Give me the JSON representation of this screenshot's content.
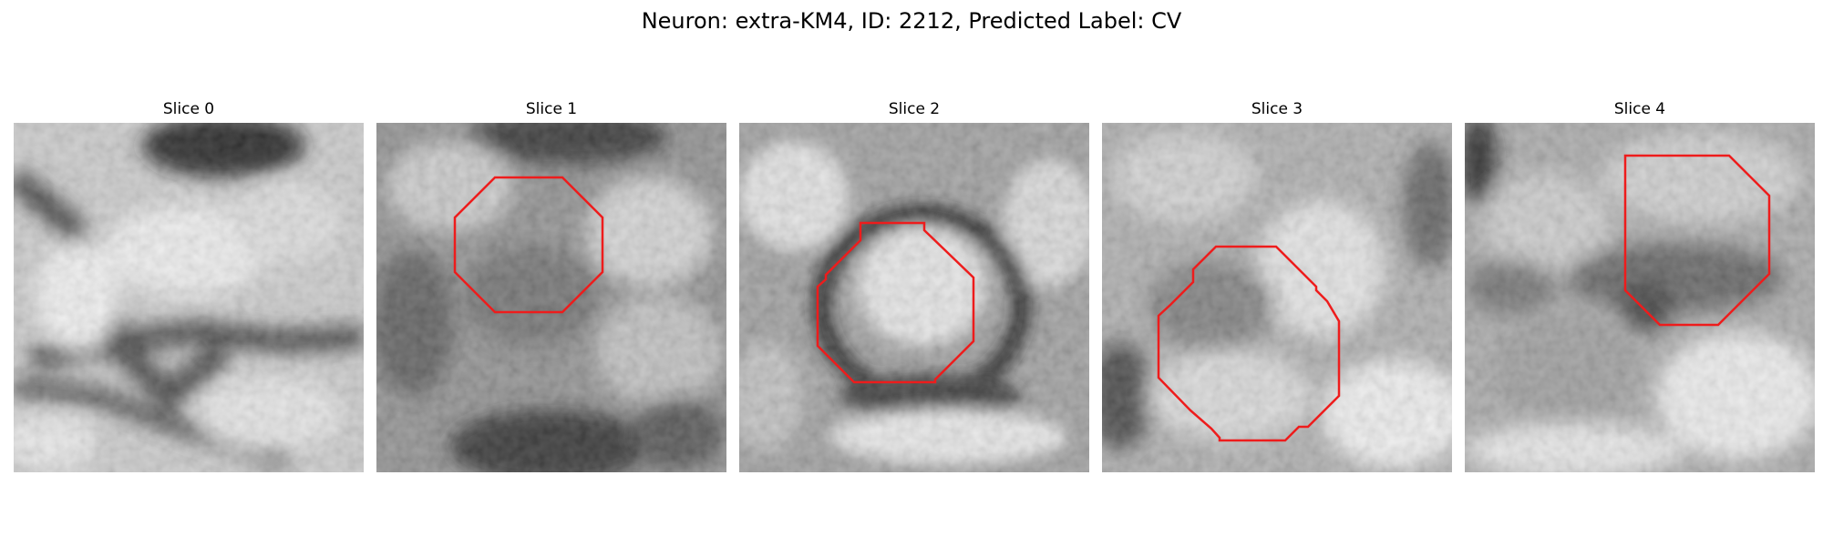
{
  "figure": {
    "title": "Neuron: extra-KM4, ID: 2212, Predicted Label: CV"
  },
  "panels": [
    {
      "title": "Slice 0",
      "has_outline": false
    },
    {
      "title": "Slice 1",
      "has_outline": true
    },
    {
      "title": "Slice 2",
      "has_outline": true
    },
    {
      "title": "Slice 3",
      "has_outline": true
    },
    {
      "title": "Slice 4",
      "has_outline": true
    }
  ],
  "colors": {
    "outline": "#ee1c1c",
    "background": "#ffffff"
  }
}
